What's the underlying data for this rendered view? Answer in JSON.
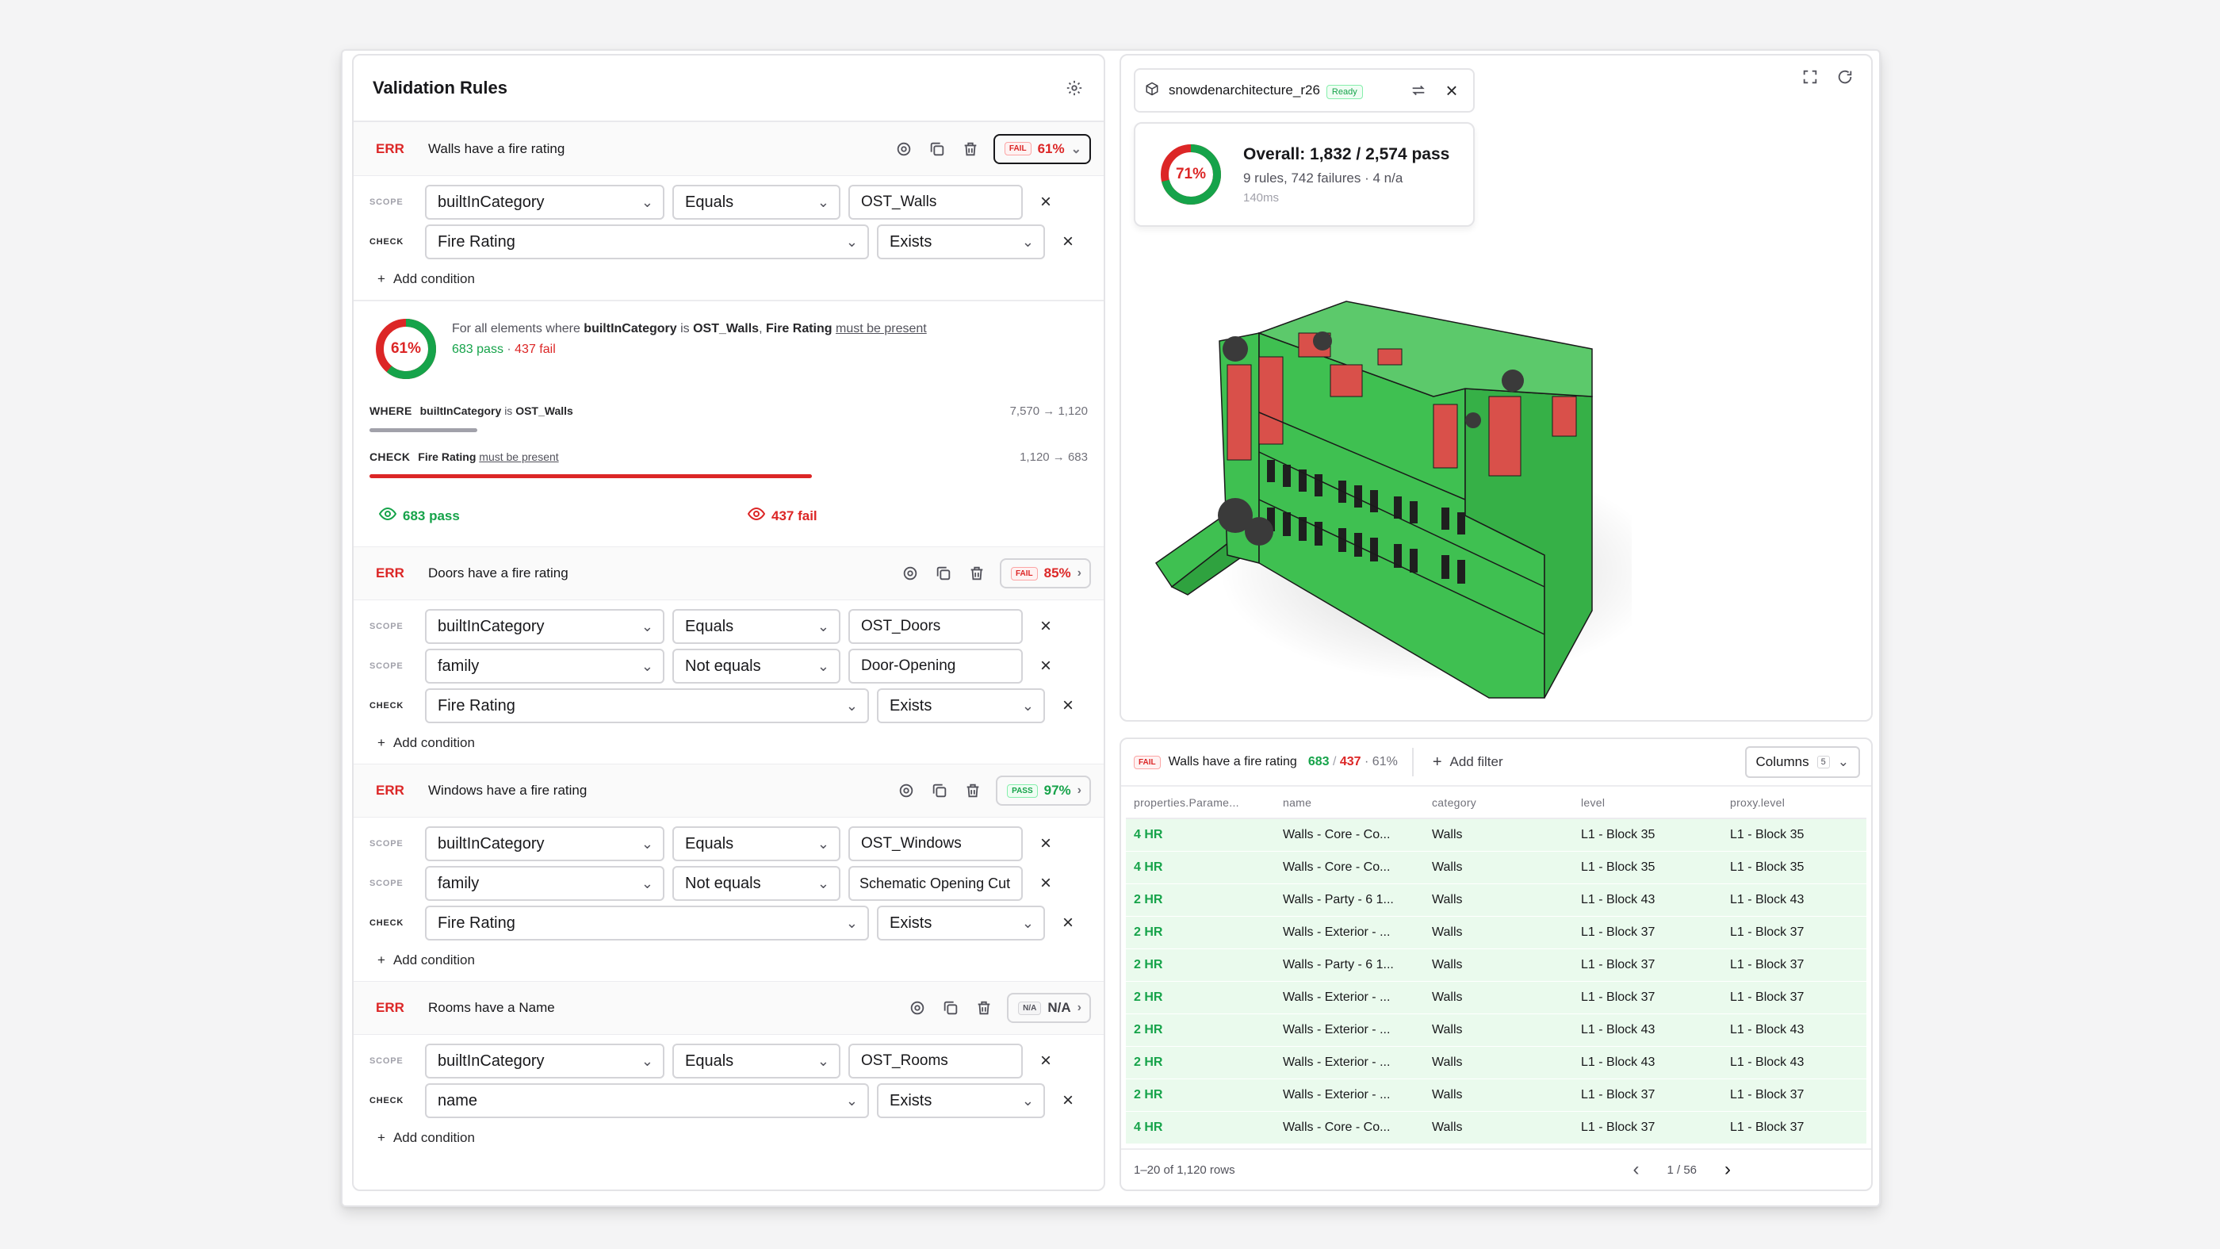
{
  "panel": {
    "title": "Validation Rules"
  },
  "rules": [
    {
      "severity": "ERR",
      "title": "Walls have a fire rating",
      "status_tag": "FAIL",
      "status_pct": "61%",
      "conditions": [
        {
          "kind": "SCOPE",
          "field": "builtInCategory",
          "op": "Equals",
          "value": "OST_Walls"
        },
        {
          "kind": "CHECK",
          "field": "Fire Rating",
          "op": "Exists"
        }
      ],
      "add_label": "Add condition",
      "summary": {
        "donut": "61%",
        "d1": "For all elements where ",
        "d2": "builtInCategory",
        "d3": " is ",
        "d4": "OST_Walls",
        "d5": ", ",
        "d6": "Fire Rating",
        "d7": "must be present",
        "pass": "683 pass",
        "sep": " · ",
        "fail": "437 fail",
        "where_label": "WHERE",
        "where_field": "builtInCategory",
        "where_is": "is",
        "where_value": "OST_Walls",
        "where_count": "7,570 → 1,120",
        "check_label": "CHECK",
        "check_field": "Fire Rating",
        "check_req": "must be present",
        "check_count": "1,120 → 683",
        "eye_pass": "683 pass",
        "eye_fail": "437 fail",
        "pass_fraction": 0.61
      }
    },
    {
      "severity": "ERR",
      "title": "Doors have a fire rating",
      "status_tag": "FAIL",
      "status_pct": "85%",
      "conditions": [
        {
          "kind": "SCOPE",
          "field": "builtInCategory",
          "op": "Equals",
          "value": "OST_Doors"
        },
        {
          "kind": "SCOPE",
          "field": "family",
          "op": "Not equals",
          "value": "Door-Opening"
        },
        {
          "kind": "CHECK",
          "field": "Fire Rating",
          "op": "Exists"
        }
      ],
      "add_label": "Add condition"
    },
    {
      "severity": "ERR",
      "title": "Windows have a fire rating",
      "status_tag": "PASS",
      "status_pct": "97%",
      "conditions": [
        {
          "kind": "SCOPE",
          "field": "builtInCategory",
          "op": "Equals",
          "value": "OST_Windows"
        },
        {
          "kind": "SCOPE",
          "field": "family",
          "op": "Not equals",
          "value": "Schematic Opening Cut"
        },
        {
          "kind": "CHECK",
          "field": "Fire Rating",
          "op": "Exists"
        }
      ],
      "add_label": "Add condition"
    },
    {
      "severity": "ERR",
      "title": "Rooms have a Name",
      "status_tag": "N/A",
      "status_pct": "N/A",
      "conditions": [
        {
          "kind": "SCOPE",
          "field": "builtInCategory",
          "op": "Equals",
          "value": "OST_Rooms"
        },
        {
          "kind": "CHECK",
          "field": "name",
          "op": "Exists"
        }
      ],
      "add_label": "Add condition"
    }
  ],
  "model": {
    "name": "snowdenarchitecture_r26",
    "badge": "Ready"
  },
  "overall": {
    "pct": "71%",
    "headline": "Overall: 1,832 / 2,574 pass",
    "sub": "9 rules, 742 failures · 4 n/a",
    "time": "140ms",
    "pass_fraction": 0.71
  },
  "results": {
    "tag": "FAIL",
    "title": "Walls have a fire rating",
    "pass": "683",
    "slash": "/",
    "fail": "437",
    "pct": "· 61%",
    "add_filter": "Add filter",
    "columns_label": "Columns",
    "columns_count": "5",
    "headers": [
      "properties.Parame...",
      "name",
      "category",
      "level",
      "proxy.level"
    ],
    "rows": [
      [
        "4 HR",
        "Walls - Core - Co...",
        "Walls",
        "L1 - Block 35",
        "L1 - Block 35"
      ],
      [
        "4 HR",
        "Walls - Core - Co...",
        "Walls",
        "L1 - Block 35",
        "L1 - Block 35"
      ],
      [
        "2 HR",
        "Walls - Party - 6 1...",
        "Walls",
        "L1 - Block 43",
        "L1 - Block 43"
      ],
      [
        "2 HR",
        "Walls - Exterior - ...",
        "Walls",
        "L1 - Block 37",
        "L1 - Block 37"
      ],
      [
        "2 HR",
        "Walls - Party - 6 1...",
        "Walls",
        "L1 - Block 37",
        "L1 - Block 37"
      ],
      [
        "2 HR",
        "Walls - Exterior - ...",
        "Walls",
        "L1 - Block 37",
        "L1 - Block 37"
      ],
      [
        "2 HR",
        "Walls - Exterior - ...",
        "Walls",
        "L1 - Block 43",
        "L1 - Block 43"
      ],
      [
        "2 HR",
        "Walls - Exterior - ...",
        "Walls",
        "L1 - Block 43",
        "L1 - Block 43"
      ],
      [
        "2 HR",
        "Walls - Exterior - ...",
        "Walls",
        "L1 - Block 37",
        "L1 - Block 37"
      ],
      [
        "4 HR",
        "Walls - Core - Co...",
        "Walls",
        "L1 - Block 37",
        "L1 - Block 37"
      ]
    ],
    "footer": "1–20 of 1,120 rows",
    "page": "1 / 56"
  },
  "colors": {
    "pass": "#16a34a",
    "fail": "#dc2626",
    "model_green": "#3fc051",
    "model_red": "#d9504a"
  }
}
